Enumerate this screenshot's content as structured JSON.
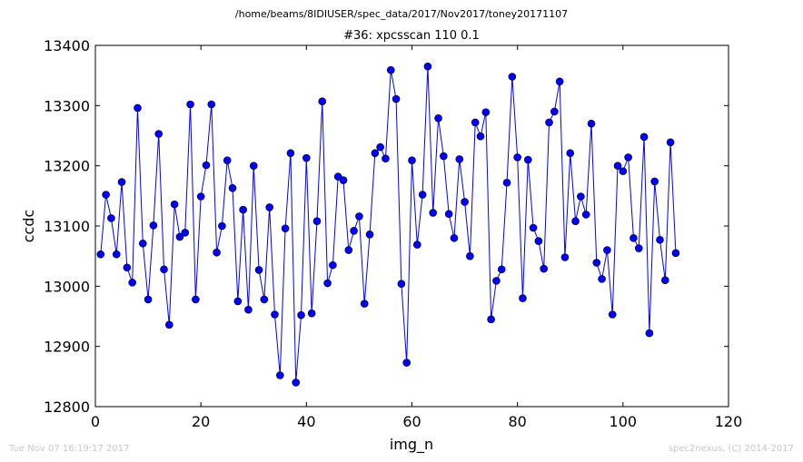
{
  "figure": {
    "suptitle": "/home/beams/8IDIUSER/spec_data/2017/Nov2017/toney20171107",
    "footer_left": "Tue Nov 07 16:19:17 2017",
    "footer_right": "spec2nexus, (C) 2014-2017"
  },
  "chart_data": {
    "type": "line",
    "title": "#36: xpcsscan 110 0.1",
    "xlabel": "img_n",
    "ylabel": "ccdc",
    "xlim": [
      0,
      120
    ],
    "ylim": [
      12800,
      13400
    ],
    "xticks": [
      "0",
      "20",
      "40",
      "60",
      "80",
      "100",
      "120"
    ],
    "yticks": [
      "12800",
      "12900",
      "13000",
      "13100",
      "13200",
      "13300",
      "13400"
    ],
    "grid": false,
    "marker": "circle",
    "line_color": "#0000ff",
    "marker_color": "#0000ff",
    "series": [
      {
        "x": [
          1,
          2,
          3,
          4,
          5,
          6,
          7,
          8,
          9,
          10,
          11,
          12,
          13,
          14,
          15,
          16,
          17,
          18,
          19,
          20,
          21,
          22,
          23,
          24,
          25,
          26,
          27,
          28,
          29,
          30,
          31,
          32,
          33,
          34,
          35,
          36,
          37,
          38,
          39,
          40,
          41,
          42,
          43,
          44,
          45,
          46,
          47,
          48,
          49,
          50,
          51,
          52,
          53,
          54,
          55,
          56,
          57,
          58,
          59,
          60,
          61,
          62,
          63,
          64,
          65,
          66,
          67,
          68,
          69,
          70,
          71,
          72,
          73,
          74,
          75,
          76,
          77,
          78,
          79,
          80,
          81,
          82,
          83,
          84,
          85,
          86,
          87,
          88,
          89,
          90,
          91,
          92,
          93,
          94,
          95,
          96,
          97,
          98,
          99,
          100,
          101,
          102,
          103,
          104,
          105,
          106,
          107,
          108,
          109,
          110
        ],
        "y": [
          13053,
          13152,
          13113,
          13053,
          13173,
          13031,
          13006,
          13296,
          13071,
          12978,
          13101,
          13253,
          13028,
          12936,
          13136,
          13082,
          13089,
          13302,
          12978,
          13149,
          13201,
          13302,
          13056,
          13100,
          13209,
          13163,
          12975,
          13127,
          12961,
          13200,
          13027,
          12978,
          13131,
          12953,
          12852,
          13096,
          13221,
          12840,
          12952,
          13213,
          12955,
          13108,
          13307,
          13005,
          13035,
          13182,
          13176,
          13060,
          13092,
          13116,
          12971,
          13086,
          13221,
          13231,
          13212,
          13359,
          13311,
          13004,
          12873,
          13209,
          13069,
          13152,
          13365,
          13122,
          13279,
          13216,
          13120,
          13080,
          13211,
          13140,
          13050,
          13272,
          13249,
          13289,
          12945,
          13009,
          13028,
          13172,
          13348,
          13214,
          12980,
          13210,
          13097,
          13075,
          13029,
          13272,
          13290,
          13340,
          13048,
          13221,
          13108,
          13149,
          13119,
          13270,
          13039,
          13012,
          13060,
          12953,
          13200,
          13191,
          13214,
          13080,
          13063,
          13248,
          12922,
          13174,
          13077,
          13010,
          13239,
          13055
        ]
      }
    ]
  }
}
